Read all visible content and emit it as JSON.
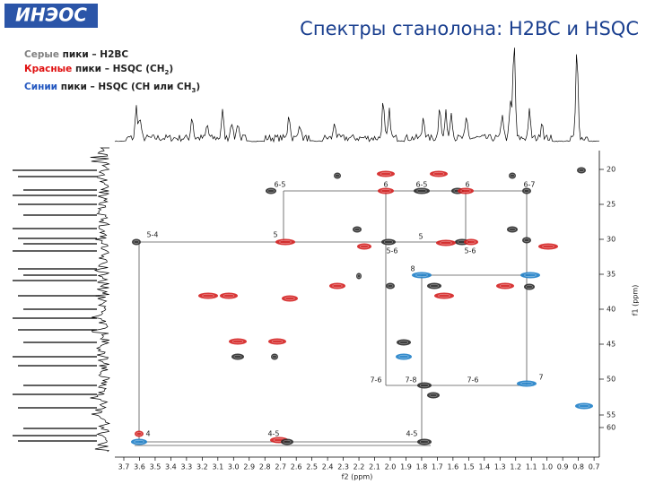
{
  "logo": "ИНЭОС",
  "title": "Спектры станолона: H2BC и HSQC",
  "legend": [
    {
      "word": "Серые",
      "text": "пики – H2BC"
    },
    {
      "word": "Красные",
      "text": "пики – HSQC (CH",
      "sub": "2",
      "end": ")"
    },
    {
      "word": "Синии",
      "text": "пики – HSQC (CH или CH",
      "sub": "3",
      "end": ")"
    }
  ],
  "x_axis": {
    "label": "f2 (ppm)",
    "ticks": [
      "3.7",
      "3.6",
      "3.5",
      "3.4",
      "3.3",
      "3.2",
      "3.1",
      "3.0",
      "2.9",
      "2.8",
      "2.7",
      "2.6",
      "2.5",
      "2.4",
      "2.3",
      "2.2",
      "2.1",
      "2.0",
      "1.9",
      "1.8",
      "1.7",
      "1.6",
      "1.5",
      "1.4",
      "1.3",
      "1.2",
      "1.1",
      "1.0",
      "0.9",
      "0.8",
      "0.7"
    ]
  },
  "y_axis": {
    "label": "f1 (ppm)",
    "ticks": [
      "20",
      "25",
      "30",
      "35",
      "40",
      "45",
      "50",
      "55",
      "60"
    ]
  },
  "peak_labels": [
    "6-5",
    "6",
    "6-5",
    "6",
    "6-7",
    "5-4",
    "5",
    "5",
    "5-6",
    "5-6",
    "8",
    "7-6",
    "7-8",
    "7-6",
    "7",
    "4",
    "4-5",
    "4-5"
  ]
}
